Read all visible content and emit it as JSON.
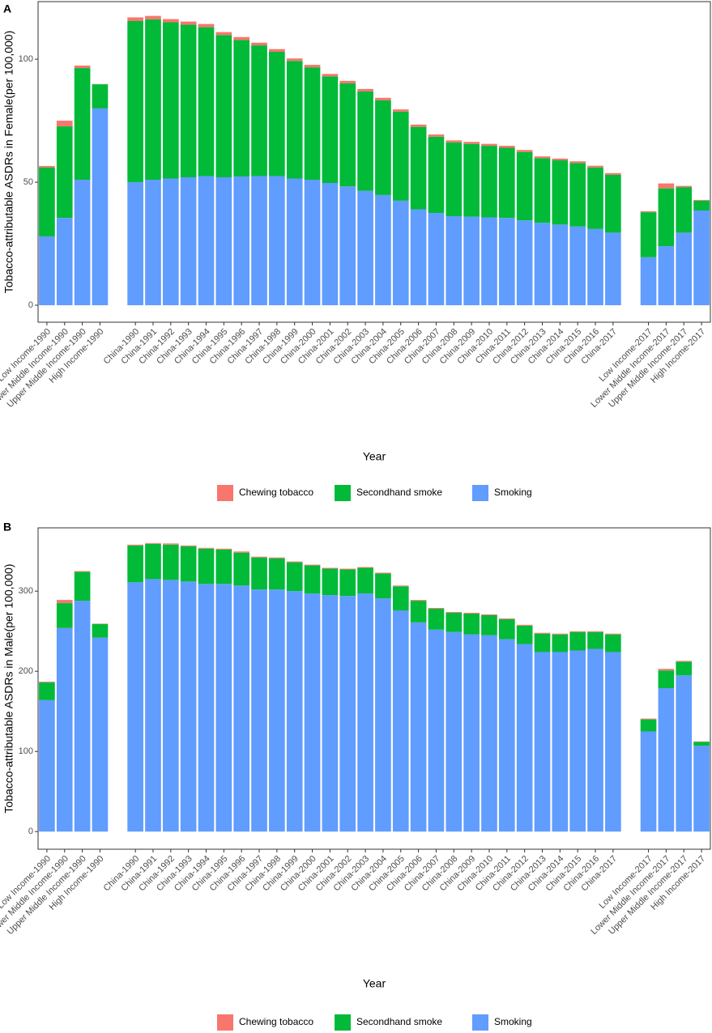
{
  "chart_data": [
    {
      "type": "bar",
      "stacked": true,
      "panel_label": "A",
      "ylabel": "Tobacco-attributable ASDRs in Female(per 100,000)",
      "xlabel": "Year",
      "legend": "bottom",
      "categories": [
        "Low Income-1990",
        "Lower Middle Income-1990",
        "Upper Middle Income-1990",
        "High Income-1990",
        null,
        "China-1990",
        "China-1991",
        "China-1992",
        "China-1993",
        "China-1994",
        "China-1995",
        "China-1996",
        "China-1997",
        "China-1998",
        "China-1999",
        "China-2000",
        "China-2001",
        "China-2002",
        "China-2003",
        "China-2004",
        "China-2005",
        "China-2006",
        "China-2007",
        "China-2008",
        "China-2009",
        "China-2010",
        "China-2011",
        "China-2012",
        "China-2013",
        "China-2014",
        "China-2015",
        "China-2016",
        "China-2017",
        null,
        "Low Income-2017",
        "Lower Middle Income-2017",
        "Upper Middle Income-2017",
        "High Income-2017"
      ],
      "series": [
        {
          "name": "Chewing tobacco",
          "color": "#F8766D",
          "values": [
            0.6,
            2.3,
            1.0,
            0.1,
            null,
            1.5,
            1.4,
            1.3,
            1.3,
            1.3,
            1.2,
            1.2,
            1.1,
            1.1,
            1.0,
            1.0,
            1.0,
            1.0,
            1.0,
            1.0,
            0.9,
            0.9,
            0.9,
            0.8,
            0.8,
            0.8,
            0.8,
            0.8,
            0.7,
            0.7,
            0.7,
            0.7,
            0.7,
            null,
            0.4,
            2.0,
            0.5,
            0.3
          ]
        },
        {
          "name": "Secondhand smoke",
          "color": "#00BA38",
          "values": [
            28,
            37.2,
            45.4,
            9.8,
            null,
            65.5,
            65.2,
            63.5,
            62,
            60.5,
            57.8,
            55.5,
            53.1,
            50.5,
            47.8,
            45.7,
            43.3,
            41.9,
            40.4,
            38.5,
            36.2,
            33.5,
            31,
            30,
            29.6,
            29.1,
            28.5,
            27.8,
            26.3,
            26.1,
            25.8,
            25,
            23.5,
            null,
            18.3,
            23.5,
            18.5,
            4
          ]
        },
        {
          "name": "Smoking",
          "color": "#619CFF",
          "values": [
            28,
            35.5,
            51,
            80,
            null,
            50,
            51,
            51.5,
            52,
            52.5,
            52,
            52.3,
            52.5,
            52.5,
            51.5,
            51,
            49.7,
            48.3,
            46.5,
            44.8,
            42.5,
            39,
            37.5,
            36.2,
            36,
            35.7,
            35.5,
            34.5,
            33.5,
            32.8,
            32,
            31,
            29.5,
            null,
            19.5,
            24,
            29.5,
            38.5
          ]
        }
      ],
      "ylim": [
        -6.9,
        123.4
      ],
      "yticks": [
        0,
        50,
        100
      ]
    },
    {
      "type": "bar",
      "stacked": true,
      "panel_label": "B",
      "ylabel": "Tobacco-attributable ASDRs in Male(per 100,000)",
      "xlabel": "Year",
      "legend": "bottom",
      "categories": [
        "Low Income-1990",
        "Lower Middle Income-1990",
        "Upper Middle Income-1990",
        "High Income-1990",
        null,
        "China-1990",
        "China-1991",
        "China-1992",
        "China-1993",
        "China-1994",
        "China-1995",
        "China-1996",
        "China-1997",
        "China-1998",
        "China-1999",
        "China-2000",
        "China-2001",
        "China-2002",
        "China-2003",
        "China-2004",
        "China-2005",
        "China-2006",
        "China-2007",
        "China-2008",
        "China-2009",
        "China-2010",
        "China-2011",
        "China-2012",
        "China-2013",
        "China-2014",
        "China-2015",
        "China-2016",
        "China-2017",
        null,
        "Low Income-2017",
        "Lower Middle Income-2017",
        "Upper Middle Income-2017",
        "High Income-2017"
      ],
      "series": [
        {
          "name": "Chewing tobacco",
          "color": "#F8766D",
          "values": [
            1,
            4,
            1,
            0.5,
            null,
            1,
            1,
            1.5,
            1,
            1,
            1,
            1.5,
            1,
            1,
            1,
            1,
            1,
            1,
            1,
            1,
            1,
            1,
            1,
            1,
            1,
            1,
            1,
            1,
            1,
            1,
            1,
            1,
            1,
            null,
            1,
            2,
            1,
            0.5
          ]
        },
        {
          "name": "Secondhand smoke",
          "color": "#00BA38",
          "values": [
            22,
            31,
            36,
            17,
            null,
            46,
            44,
            44,
            44,
            44,
            43,
            41,
            40,
            39,
            36,
            35,
            33,
            33,
            32,
            31,
            30,
            27,
            26,
            24,
            26,
            25,
            25,
            23,
            23,
            22,
            23,
            21,
            22,
            null,
            15,
            22,
            17,
            5
          ]
        },
        {
          "name": "Smoking",
          "color": "#619CFF",
          "values": [
            164,
            254,
            288,
            242,
            null,
            311,
            315,
            314,
            312,
            309,
            309,
            307,
            302,
            302,
            300,
            297,
            295,
            294,
            297,
            291,
            276,
            261,
            252,
            249,
            246,
            245,
            240,
            234,
            224,
            224,
            226,
            228,
            224,
            null,
            125,
            179,
            195,
            107
          ]
        }
      ],
      "ylim": [
        -22,
        379
      ],
      "yticks": [
        0,
        100,
        200,
        300
      ]
    }
  ]
}
